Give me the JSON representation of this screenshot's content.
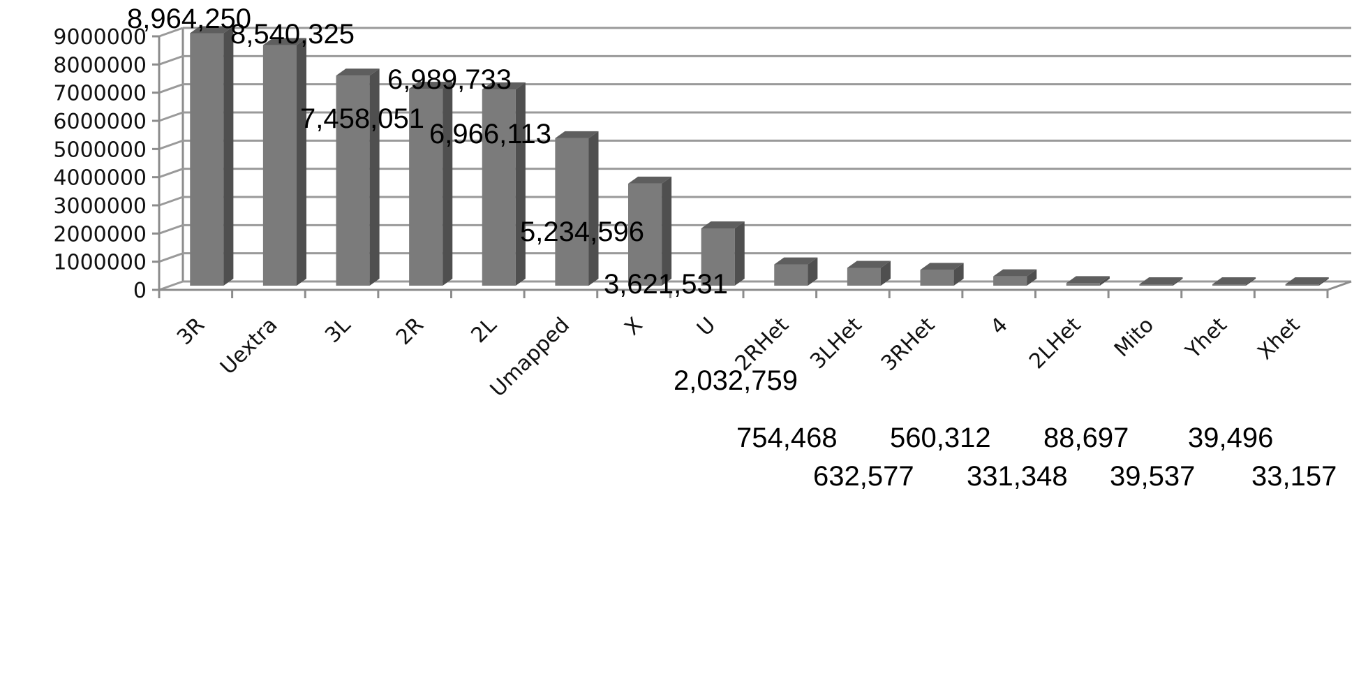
{
  "chart_data": {
    "type": "bar",
    "variant": "3d-column",
    "title": "",
    "xlabel": "",
    "ylabel": "",
    "ylim": [
      0,
      9000000
    ],
    "yticks": [
      0,
      1000000,
      2000000,
      3000000,
      4000000,
      5000000,
      6000000,
      7000000,
      8000000,
      9000000
    ],
    "ytick_labels": [
      "0",
      "1000000",
      "2000000",
      "3000000",
      "4000000",
      "5000000",
      "6000000",
      "7000000",
      "8000000",
      "9000000"
    ],
    "grid": true,
    "legend": null,
    "categories": [
      "3R",
      "Uextra",
      "3L",
      "2R",
      "2L",
      "Umapped",
      "X",
      "U",
      "2RHet",
      "3LHet",
      "3RHet",
      "4",
      "2LHet",
      "Mito",
      "Yhet",
      "Xhet"
    ],
    "values": [
      8964250,
      8540325,
      7458051,
      6989733,
      6966113,
      5234596,
      3621531,
      2032759,
      754468,
      632577,
      560312,
      331348,
      88697,
      39537,
      39496,
      33157
    ],
    "data_labels": [
      "8,964,250",
      "8,540,325",
      "7,458,051",
      "6,989,733",
      "6,966,113",
      "5,234,596",
      "3,621,531",
      "2,032,759",
      "754,468",
      "632,577",
      "560,312",
      "331,348",
      "88,697",
      "39,537",
      "39,496",
      "33,157"
    ]
  },
  "colors": {
    "bar_front": "#7b7b7b",
    "bar_side": "#4f4f4f",
    "bar_top": "#5e5e5e",
    "gridline": "#9a9a9a",
    "text": "#000000",
    "background": "#ffffff"
  }
}
